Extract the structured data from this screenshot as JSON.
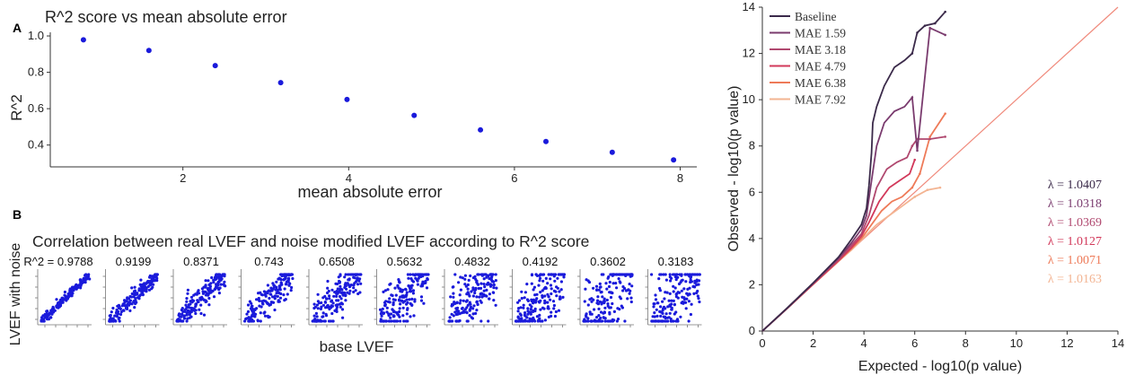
{
  "panel_a": {
    "panel_label": "A",
    "chart_data": {
      "type": "scatter",
      "title": "R^2 score vs mean absolute error",
      "xlabel": "mean absolute error",
      "ylabel": "R^2",
      "xlim": [
        0.4,
        8.2
      ],
      "ylim": [
        0.28,
        1.02
      ],
      "xticks": [
        "2",
        "4",
        "6",
        "8"
      ],
      "yticks": [
        "0.4",
        "0.6",
        "0.8",
        "1.0"
      ],
      "x": [
        0.8,
        1.59,
        2.39,
        3.18,
        3.98,
        4.79,
        5.59,
        6.38,
        7.18,
        7.92
      ],
      "y": [
        0.9788,
        0.9199,
        0.8371,
        0.743,
        0.6508,
        0.5632,
        0.4832,
        0.4192,
        0.3602,
        0.3183
      ],
      "color": "#1a1adb",
      "grid": false
    }
  },
  "panel_b": {
    "panel_label": "B",
    "chart_data": {
      "type": "scatter",
      "title": "Correlation between real LVEF and noise modified LVEF according to R^2 score",
      "xlabel": "base LVEF",
      "ylabel": "LVEF with noise",
      "subplot_labels": [
        "R^2 = 0.9788",
        "0.9199",
        "0.8371",
        "0.743",
        "0.6508",
        "0.5632",
        "0.4832",
        "0.4192",
        "0.3602",
        "0.3183"
      ],
      "r2": [
        0.9788,
        0.9199,
        0.8371,
        0.743,
        0.6508,
        0.5632,
        0.4832,
        0.4192,
        0.3602,
        0.3183
      ],
      "color": "#1a1adb"
    }
  },
  "panel_c": {
    "chart_data": {
      "type": "line",
      "xlabel": "Expected - log10(p value)",
      "ylabel": "Observed - log10(p value)",
      "xlim": [
        0,
        14
      ],
      "ylim": [
        0,
        14
      ],
      "xticks": [
        "0",
        "2",
        "4",
        "6",
        "8",
        "10",
        "12",
        "14"
      ],
      "yticks": [
        "0",
        "2",
        "4",
        "6",
        "8",
        "10",
        "12",
        "14"
      ],
      "legend_position": "top-left",
      "reference_line_color": "#f08a7c",
      "series": [
        {
          "name": "Baseline",
          "color": "#3b2a4a",
          "lambda": "λ = 1.0407",
          "x": [
            0,
            1,
            2,
            3,
            3.5,
            3.9,
            4.1,
            4.2,
            4.3,
            4.35,
            4.5,
            4.8,
            5.2,
            5.6,
            5.9,
            6.1,
            6.4,
            6.8,
            7.2
          ],
          "y": [
            0,
            1.02,
            2.08,
            3.2,
            3.95,
            4.6,
            5.3,
            6.3,
            7.7,
            9.0,
            9.7,
            10.6,
            11.4,
            11.7,
            12.0,
            12.9,
            13.2,
            13.3,
            13.8
          ]
        },
        {
          "name": "MAE 1.59",
          "color": "#7a3b6e",
          "lambda": "λ = 1.0318",
          "x": [
            0,
            1,
            2,
            3,
            3.5,
            3.9,
            4.1,
            4.3,
            4.5,
            4.8,
            5.2,
            5.6,
            5.9,
            6.1,
            6.6,
            7.2
          ],
          "y": [
            0,
            1.01,
            2.06,
            3.15,
            3.8,
            4.4,
            5.0,
            6.5,
            8.0,
            9.0,
            9.5,
            9.7,
            10.1,
            7.8,
            13.1,
            12.8
          ]
        },
        {
          "name": "MAE 3.18",
          "color": "#b0486f",
          "lambda": "λ = 1.0369",
          "x": [
            0,
            1,
            2,
            3,
            3.5,
            3.9,
            4.2,
            4.5,
            4.9,
            5.3,
            5.7,
            5.9,
            6.1,
            6.6,
            7.2
          ],
          "y": [
            0,
            1.01,
            2.05,
            3.1,
            3.7,
            4.2,
            5.0,
            6.2,
            7.0,
            7.3,
            7.5,
            8.0,
            8.3,
            8.3,
            8.4
          ]
        },
        {
          "name": "MAE 4.79",
          "color": "#d2385a",
          "lambda": "λ = 1.0127",
          "x": [
            0,
            1,
            2,
            3,
            3.5,
            3.9,
            4.2,
            4.6,
            5.0,
            5.4,
            5.8,
            6.0
          ],
          "y": [
            0,
            1.0,
            2.03,
            3.05,
            3.6,
            4.1,
            4.7,
            5.6,
            6.2,
            6.5,
            6.8,
            7.4
          ]
        },
        {
          "name": "MAE 6.38",
          "color": "#ee7a58",
          "lambda": "λ = 1.0071",
          "x": [
            0,
            1,
            2,
            3,
            3.5,
            3.9,
            4.3,
            4.7,
            5.1,
            5.5,
            5.9,
            6.2,
            6.6,
            7.2
          ],
          "y": [
            0,
            1.0,
            2.02,
            3.03,
            3.55,
            4.0,
            4.6,
            5.2,
            5.6,
            5.8,
            6.2,
            6.8,
            8.4,
            9.4
          ]
        },
        {
          "name": "MAE 7.92",
          "color": "#f3b492",
          "lambda": "λ = 1.0163",
          "x": [
            0,
            1,
            2,
            3,
            3.5,
            4.0,
            4.5,
            5.0,
            5.5,
            6.0,
            6.5,
            7.0
          ],
          "y": [
            0,
            1.0,
            2.02,
            3.03,
            3.5,
            4.05,
            4.6,
            5.0,
            5.4,
            5.8,
            6.1,
            6.2
          ]
        }
      ]
    }
  }
}
